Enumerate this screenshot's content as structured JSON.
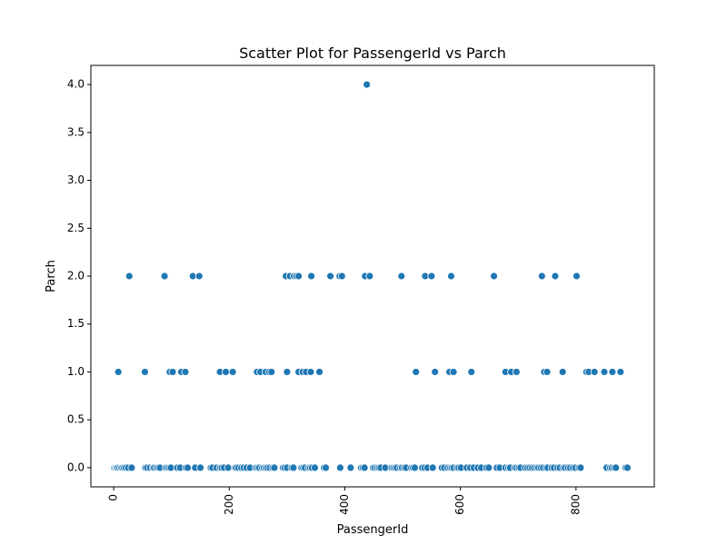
{
  "chart_data": {
    "type": "scatter",
    "title": "Scatter Plot for PassengerId vs Parch",
    "xlabel": "PassengerId",
    "ylabel": "Parch",
    "xlim": [
      -39.5,
      935.5
    ],
    "ylim": [
      -0.2,
      4.2
    ],
    "x_ticks": [
      0,
      200,
      400,
      600,
      800
    ],
    "y_ticks": [
      0.0,
      0.5,
      1.0,
      1.5,
      2.0,
      2.5,
      3.0,
      3.5,
      4.0
    ],
    "x_tick_labels": [
      "0",
      "200",
      "400",
      "600",
      "800"
    ],
    "y_tick_labels": [
      "0.0",
      "0.5",
      "1.0",
      "1.5",
      "2.0",
      "2.5",
      "3.0",
      "3.5",
      "4.0"
    ],
    "grid": false,
    "marker_color": "#1f77b4",
    "series": [
      {
        "points": [
          [
            1,
            0
          ],
          [
            3,
            0
          ],
          [
            5,
            0
          ],
          [
            7,
            0
          ],
          [
            10,
            0
          ],
          [
            13,
            0
          ],
          [
            15,
            0
          ],
          [
            18,
            0
          ],
          [
            21,
            0
          ],
          [
            25,
            0
          ],
          [
            31,
            0
          ],
          [
            55,
            0
          ],
          [
            58,
            0
          ],
          [
            63,
            0
          ],
          [
            68,
            0
          ],
          [
            70,
            0
          ],
          [
            74,
            0
          ],
          [
            77,
            0
          ],
          [
            80,
            0
          ],
          [
            90,
            0
          ],
          [
            93,
            0
          ],
          [
            96,
            0
          ],
          [
            99,
            0
          ],
          [
            110,
            0
          ],
          [
            115,
            0
          ],
          [
            125,
            0
          ],
          [
            128,
            0
          ],
          [
            141,
            0
          ],
          [
            150,
            0
          ],
          [
            168,
            0
          ],
          [
            171,
            0
          ],
          [
            178,
            0
          ],
          [
            184,
            0
          ],
          [
            187,
            0
          ],
          [
            191,
            0
          ],
          [
            198,
            0
          ],
          [
            210,
            0
          ],
          [
            212,
            0
          ],
          [
            216,
            0
          ],
          [
            221,
            0
          ],
          [
            225,
            0
          ],
          [
            230,
            0
          ],
          [
            236,
            0
          ],
          [
            246,
            0
          ],
          [
            249,
            0
          ],
          [
            252,
            0
          ],
          [
            257,
            0
          ],
          [
            260,
            0
          ],
          [
            263,
            0
          ],
          [
            266,
            0
          ],
          [
            270,
            0
          ],
          [
            275,
            0
          ],
          [
            278,
            0
          ],
          [
            293,
            0
          ],
          [
            296,
            0
          ],
          [
            300,
            0
          ],
          [
            308,
            0
          ],
          [
            311,
            0
          ],
          [
            325,
            0
          ],
          [
            328,
            0
          ],
          [
            331,
            0
          ],
          [
            337,
            0
          ],
          [
            340,
            0
          ],
          [
            343,
            0
          ],
          [
            348,
            0
          ],
          [
            364,
            0
          ],
          [
            367,
            0
          ],
          [
            392,
            0
          ],
          [
            410,
            0
          ],
          [
            428,
            0
          ],
          [
            431,
            0
          ],
          [
            434,
            0
          ],
          [
            449,
            0
          ],
          [
            452,
            0
          ],
          [
            456,
            0
          ],
          [
            459,
            0
          ],
          [
            462,
            0
          ],
          [
            470,
            0
          ],
          [
            481,
            0
          ],
          [
            484,
            0
          ],
          [
            487,
            0
          ],
          [
            490,
            0
          ],
          [
            496,
            0
          ],
          [
            499,
            0
          ],
          [
            503,
            0
          ],
          [
            506,
            0
          ],
          [
            515,
            0
          ],
          [
            518,
            0
          ],
          [
            521,
            0
          ],
          [
            534,
            0
          ],
          [
            538,
            0
          ],
          [
            543,
            0
          ],
          [
            552,
            0
          ],
          [
            568,
            0
          ],
          [
            572,
            0
          ],
          [
            578,
            0
          ],
          [
            582,
            0
          ],
          [
            585,
            0
          ],
          [
            588,
            0
          ],
          [
            594,
            0
          ],
          [
            597,
            0
          ],
          [
            601,
            0
          ],
          [
            611,
            0
          ],
          [
            617,
            0
          ],
          [
            623,
            0
          ],
          [
            630,
            0
          ],
          [
            636,
            0
          ],
          [
            645,
            0
          ],
          [
            649,
            0
          ],
          [
            663,
            0
          ],
          [
            668,
            0
          ],
          [
            678,
            0
          ],
          [
            683,
            0
          ],
          [
            686,
            0
          ],
          [
            694,
            0
          ],
          [
            697,
            0
          ],
          [
            701,
            0
          ],
          [
            704,
            0
          ],
          [
            712,
            0
          ],
          [
            716,
            0
          ],
          [
            720,
            0
          ],
          [
            724,
            0
          ],
          [
            728,
            0
          ],
          [
            732,
            0
          ],
          [
            735,
            0
          ],
          [
            739,
            0
          ],
          [
            743,
            0
          ],
          [
            748,
            0
          ],
          [
            751,
            0
          ],
          [
            758,
            0
          ],
          [
            762,
            0
          ],
          [
            768,
            0
          ],
          [
            772,
            0
          ],
          [
            778,
            0
          ],
          [
            781,
            0
          ],
          [
            786,
            0
          ],
          [
            790,
            0
          ],
          [
            795,
            0
          ],
          [
            799,
            0
          ],
          [
            805,
            0
          ],
          [
            808,
            0
          ],
          [
            853,
            0
          ],
          [
            859,
            0
          ],
          [
            862,
            0
          ],
          [
            866,
            0
          ],
          [
            869,
            0
          ],
          [
            886,
            0
          ],
          [
            889,
            0
          ],
          [
            8,
            1
          ],
          [
            54,
            1
          ],
          [
            97,
            1
          ],
          [
            102,
            1
          ],
          [
            117,
            1
          ],
          [
            124,
            1
          ],
          [
            184,
            1
          ],
          [
            194,
            1
          ],
          [
            206,
            1
          ],
          [
            248,
            1
          ],
          [
            254,
            1
          ],
          [
            263,
            1
          ],
          [
            269,
            1
          ],
          [
            273,
            1
          ],
          [
            300,
            1
          ],
          [
            320,
            1
          ],
          [
            327,
            1
          ],
          [
            333,
            1
          ],
          [
            341,
            1
          ],
          [
            356,
            1
          ],
          [
            523,
            1
          ],
          [
            556,
            1
          ],
          [
            581,
            1
          ],
          [
            588,
            1
          ],
          [
            619,
            1
          ],
          [
            678,
            1
          ],
          [
            688,
            1
          ],
          [
            697,
            1
          ],
          [
            745,
            1
          ],
          [
            750,
            1
          ],
          [
            777,
            1
          ],
          [
            818,
            1
          ],
          [
            822,
            1
          ],
          [
            832,
            1
          ],
          [
            849,
            1
          ],
          [
            863,
            1
          ],
          [
            877,
            1
          ],
          [
            27,
            2
          ],
          [
            88,
            2
          ],
          [
            137,
            2
          ],
          [
            148,
            2
          ],
          [
            298,
            2
          ],
          [
            305,
            2
          ],
          [
            312,
            2
          ],
          [
            316,
            2
          ],
          [
            320,
            2
          ],
          [
            342,
            2
          ],
          [
            375,
            2
          ],
          [
            391,
            2
          ],
          [
            395,
            2
          ],
          [
            435,
            2
          ],
          [
            443,
            2
          ],
          [
            498,
            2
          ],
          [
            539,
            2
          ],
          [
            550,
            2
          ],
          [
            584,
            2
          ],
          [
            658,
            2
          ],
          [
            741,
            2
          ],
          [
            764,
            2
          ],
          [
            801,
            2
          ],
          [
            438,
            4
          ]
        ]
      }
    ]
  }
}
